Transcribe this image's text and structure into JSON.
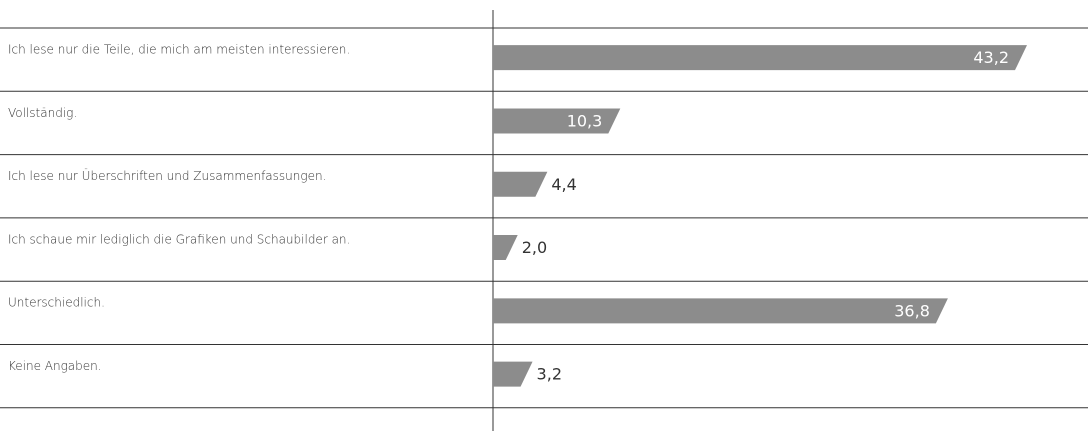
{
  "chart_data": {
    "type": "bar",
    "orientation": "horizontal",
    "categories": [
      "Ich lese nur die Teile, die mich am meisten interessieren.",
      "Vollständig.",
      "Ich lese nur Überschriften und Zusammenfassungen.",
      "Ich schaue mir lediglich die Grafiken und Schaubilder an.",
      "Unterschiedlich.",
      "Keine Angaben."
    ],
    "values": [
      43.2,
      10.3,
      4.4,
      2.0,
      36.8,
      3.2
    ],
    "value_labels": [
      "43,2",
      "10,3",
      "4,4",
      "2,0",
      "36,8",
      "3,2"
    ],
    "color": "#8c8c8c"
  }
}
